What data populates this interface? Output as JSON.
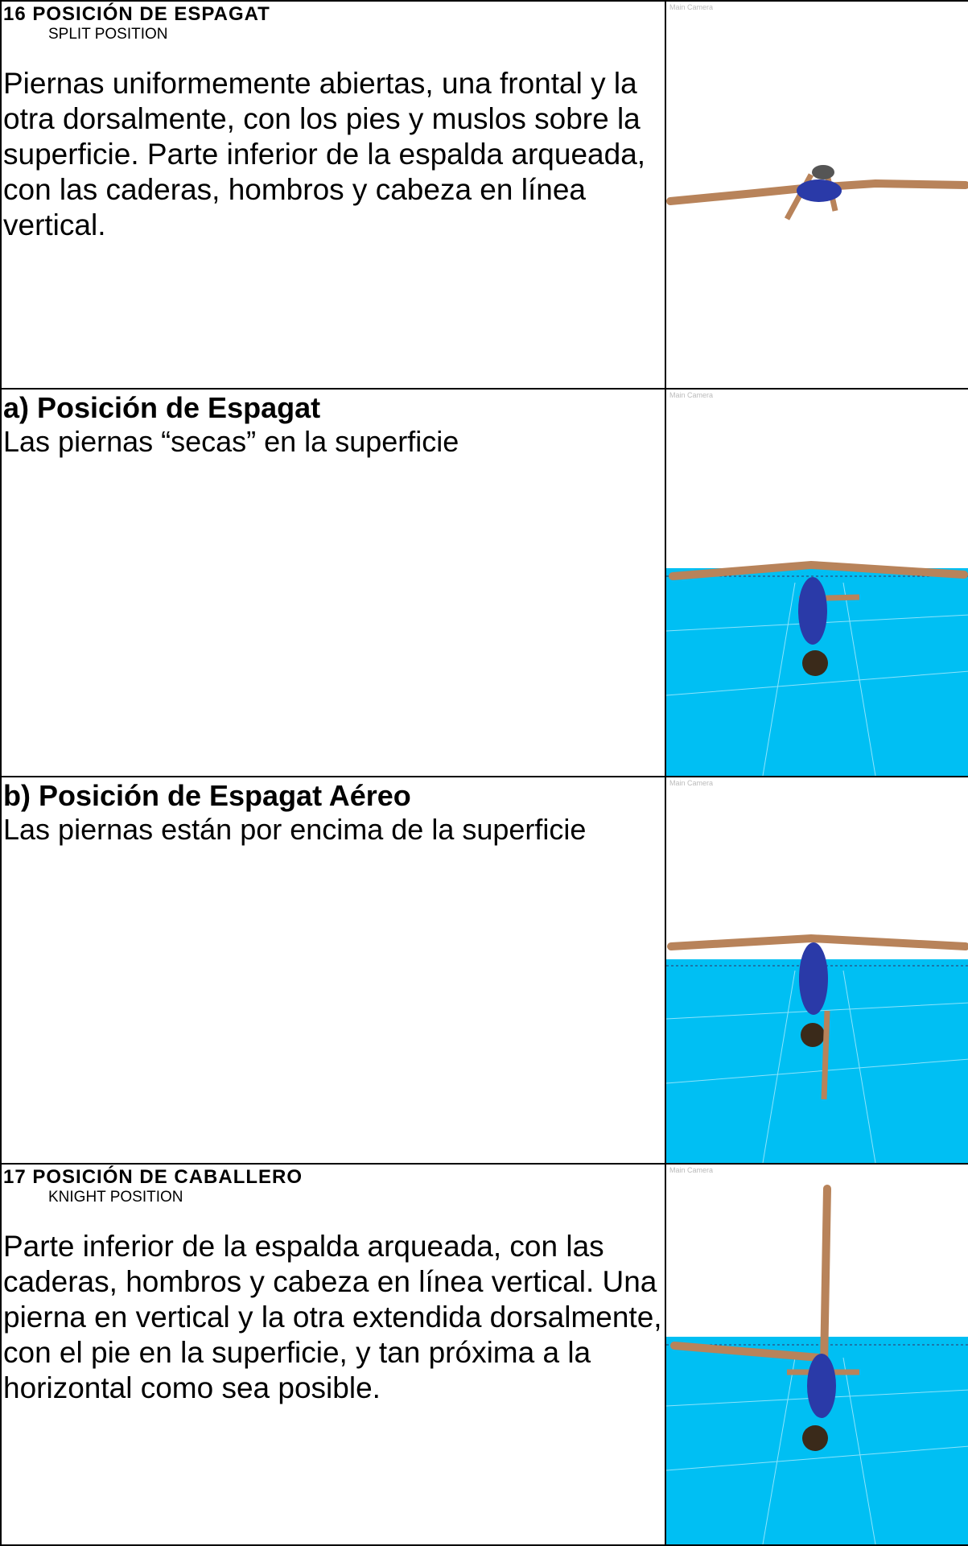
{
  "rows": [
    {
      "heading": "16 POSICIÓN DE ESPAGAT",
      "subheading": "SPLIT POSITION",
      "description": "Piernas uniformemente abiertas, una frontal y la otra dorsalmente, con los pies y muslos sobre la superficie. Parte inferior de la espalda arqueada, con las caderas, hombros y cabeza en línea vertical.",
      "camera_label": "Main Camera"
    },
    {
      "title": "a) Posición de Espagat",
      "description": "Las piernas “secas” en la superficie",
      "camera_label": "Main Camera"
    },
    {
      "title": "b) Posición de Espagat Aéreo",
      "description": "Las piernas están por encima de la superficie",
      "camera_label": "Main Camera"
    },
    {
      "heading": "17 POSICIÓN DE CABALLERO",
      "subheading": "KNIGHT POSITION",
      "description": "Parte inferior de la espalda arqueada, con las caderas, hombros y cabeza en línea vertical. Una pierna en vertical y la otra extendida dorsalmente, con el pie en la superficie, y tan próxima a la horizontal como sea posible.",
      "camera_label": "Main Camera"
    }
  ]
}
